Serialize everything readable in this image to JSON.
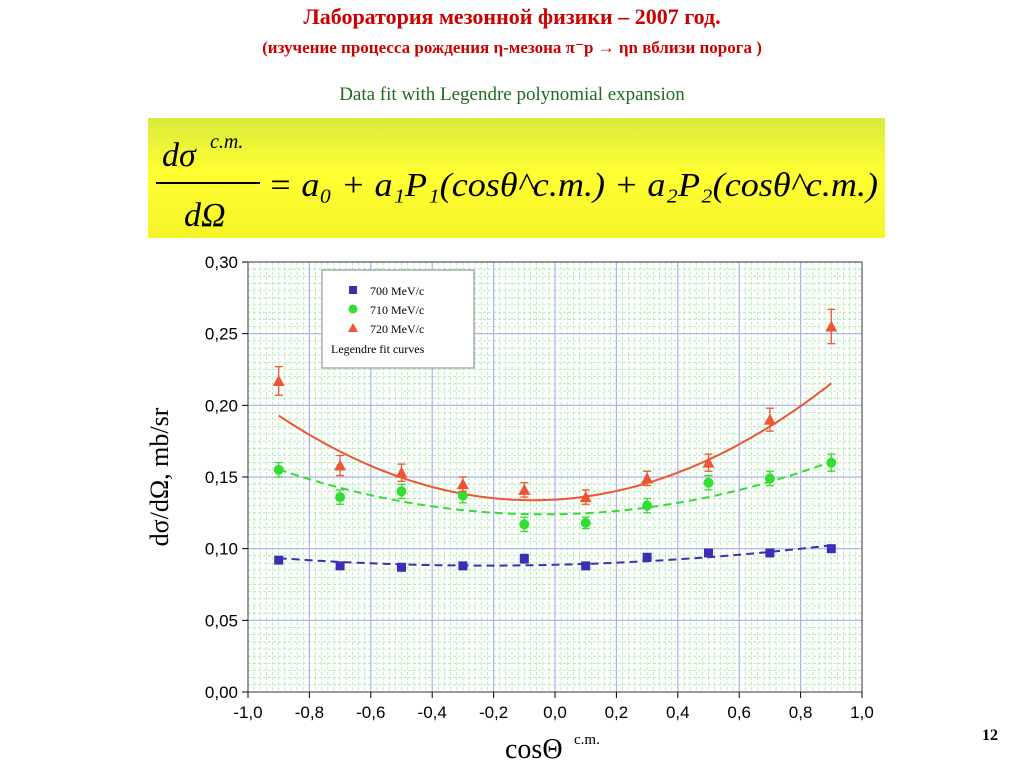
{
  "header": {
    "title": "Лаборатория мезонной физики – 2007 год.",
    "subtitle": "(изучение  процесса  рождения  η-мезона  π⁻p → ηn  вблизи  порога )",
    "caption": "Data fit with Legendre polynomial expansion"
  },
  "formula": {
    "numerator_main": "dσ",
    "numerator_sup": "c.m.",
    "denominator": "dΩ",
    "rhs": "= a₀ + a₁P₁(cosθ^c.m.) + a₂P₂(cosθ^c.m.)"
  },
  "slide_number": "12",
  "colors": {
    "title": "#cc0000",
    "caption": "#1f6b1f",
    "series_700": "#3b2fb5",
    "series_710": "#33dd33",
    "series_720": "#ee5533",
    "major_grid": "#aab0e8",
    "minor_grid": "#a8e8a8"
  },
  "chart_data": {
    "type": "scatter",
    "xlabel": "cosΘ",
    "xlabel_sup": "c.m.",
    "ylabel": "dσ/dΩ, mb/sr",
    "xlim": [
      -1.0,
      1.0
    ],
    "ylim": [
      0.0,
      0.3
    ],
    "x_ticks": [
      "-1,0",
      "-0,8",
      "-0,6",
      "-0,4",
      "-0,2",
      "0,0",
      "0,2",
      "0,4",
      "0,6",
      "0,8",
      "1,0"
    ],
    "y_ticks": [
      "0,00",
      "0,05",
      "0,10",
      "0,15",
      "0,20",
      "0,25",
      "0,30"
    ],
    "grid": true,
    "legend_position": "top-left",
    "x": [
      -0.9,
      -0.7,
      -0.5,
      -0.3,
      -0.1,
      0.1,
      0.3,
      0.5,
      0.7,
      0.9
    ],
    "series": [
      {
        "name": "700 MeV/c",
        "marker": "square",
        "color": "#3b2fb5",
        "values": [
          0.092,
          0.088,
          0.087,
          0.088,
          0.093,
          0.088,
          0.094,
          0.097,
          0.097,
          0.1
        ],
        "errors": [
          0.002,
          0.002,
          0.002,
          0.002,
          0.003,
          0.002,
          0.002,
          0.002,
          0.002,
          0.002
        ],
        "fit": {
          "a0": 0.0925,
          "a1": 0.005,
          "a2": 0.0075,
          "style": "dashed"
        }
      },
      {
        "name": "710 MeV/c",
        "marker": "circle",
        "color": "#33dd33",
        "values": [
          0.155,
          0.136,
          0.14,
          0.137,
          0.117,
          0.118,
          0.13,
          0.146,
          0.149,
          0.16
        ],
        "errors": [
          0.005,
          0.005,
          0.005,
          0.005,
          0.005,
          0.004,
          0.005,
          0.005,
          0.005,
          0.006
        ],
        "fit": {
          "a0": 0.138,
          "a1": 0.003,
          "a2": 0.028,
          "style": "dashed"
        }
      },
      {
        "name": "720 MeV/c",
        "marker": "triangle",
        "color": "#ee5533",
        "values": [
          0.217,
          0.158,
          0.153,
          0.145,
          0.141,
          0.136,
          0.149,
          0.16,
          0.19,
          0.255
        ],
        "errors": [
          0.01,
          0.007,
          0.006,
          0.005,
          0.005,
          0.005,
          0.005,
          0.006,
          0.008,
          0.012
        ],
        "fit": {
          "a0": 0.163,
          "a1": 0.0125,
          "a2": 0.0575,
          "style": "solid"
        }
      }
    ],
    "legend_extra": "Legendre fit curves"
  }
}
